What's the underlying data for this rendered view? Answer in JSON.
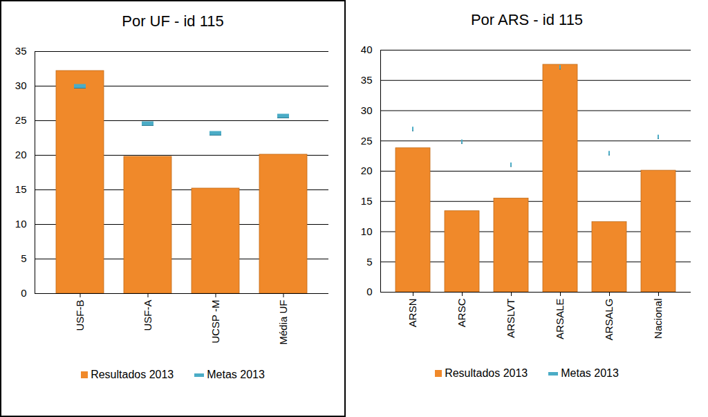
{
  "chart_data": [
    {
      "type": "bar",
      "title": "Por UF - id 115",
      "categories": [
        "USF-B",
        "USF-A",
        "UCSP -M",
        "Média UF"
      ],
      "series": [
        {
          "name": "Resultados 2013",
          "type": "bar",
          "color": "#f0892a",
          "values": [
            32.2,
            19.8,
            15.2,
            20.1
          ]
        },
        {
          "name": "Metas 2013",
          "type": "scatter",
          "marker": "dash",
          "color": "#4bacc6",
          "values": [
            30,
            24.6,
            23.2,
            25.7
          ]
        }
      ],
      "ylim": [
        0,
        35
      ],
      "yticks": [
        0,
        5,
        10,
        15,
        20,
        25,
        30,
        35
      ],
      "grid": true,
      "legend": "bottom"
    },
    {
      "type": "bar",
      "title": "Por ARS - id 115",
      "categories": [
        "ARSN",
        "ARSC",
        "ARSLVT",
        "ARSALE",
        "ARSALG",
        "Nacional"
      ],
      "series": [
        {
          "name": "Resultados 2013",
          "type": "bar",
          "color": "#f0892a",
          "values": [
            23.8,
            13.4,
            15.5,
            37.6,
            11.6,
            20.1
          ]
        },
        {
          "name": "Metas 2013",
          "type": "scatter",
          "marker": "dash",
          "color": "#4bacc6",
          "values": [
            27,
            24.9,
            21.1,
            37.2,
            23,
            25.7
          ]
        }
      ],
      "ylim": [
        0,
        40
      ],
      "yticks": [
        0,
        5,
        10,
        15,
        20,
        25,
        30,
        35,
        40
      ],
      "grid": true,
      "legend": "bottom"
    }
  ]
}
